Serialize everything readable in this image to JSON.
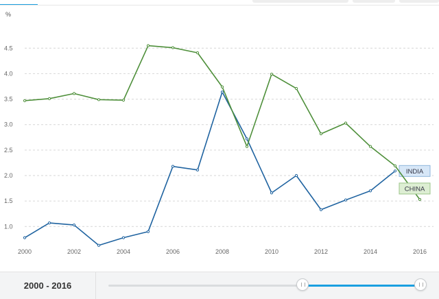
{
  "chart_data": {
    "type": "line",
    "ylabel": "%",
    "ylim": [
      0.6,
      4.8
    ],
    "xlim": [
      2000,
      2016
    ],
    "yticks": [
      "1.0",
      "1.5",
      "2.0",
      "2.5",
      "3.0",
      "3.5",
      "4.0",
      "4.5"
    ],
    "xticks": [
      "2000",
      "2002",
      "2004",
      "2006",
      "2008",
      "2010",
      "2012",
      "2014",
      "2016"
    ],
    "grid": "horizontal dashed",
    "x": [
      2000,
      2001,
      2002,
      2003,
      2004,
      2005,
      2006,
      2007,
      2008,
      2009,
      2010,
      2011,
      2012,
      2013,
      2014,
      2015,
      2016
    ],
    "series": [
      {
        "name": "INDIA",
        "color": "#1f63a0",
        "label_bg": "#d7e7f7",
        "label_border": "#8fb6dc",
        "values": [
          0.78,
          1.07,
          1.03,
          0.63,
          0.78,
          0.9,
          2.18,
          2.11,
          3.64,
          2.72,
          1.66,
          2.0,
          1.33,
          1.52,
          1.7,
          2.09,
          null
        ]
      },
      {
        "name": "CHINA",
        "color": "#4e8f3a",
        "label_bg": "#ddeed3",
        "label_border": "#9cc58a",
        "values": [
          3.47,
          3.51,
          3.61,
          3.49,
          3.48,
          4.55,
          4.51,
          4.41,
          3.74,
          2.57,
          3.99,
          3.71,
          2.82,
          3.03,
          2.57,
          2.19,
          1.53
        ]
      }
    ]
  },
  "range": {
    "label": "2000 - 2016",
    "start_fraction": 0.61,
    "end_fraction": 0.98
  }
}
